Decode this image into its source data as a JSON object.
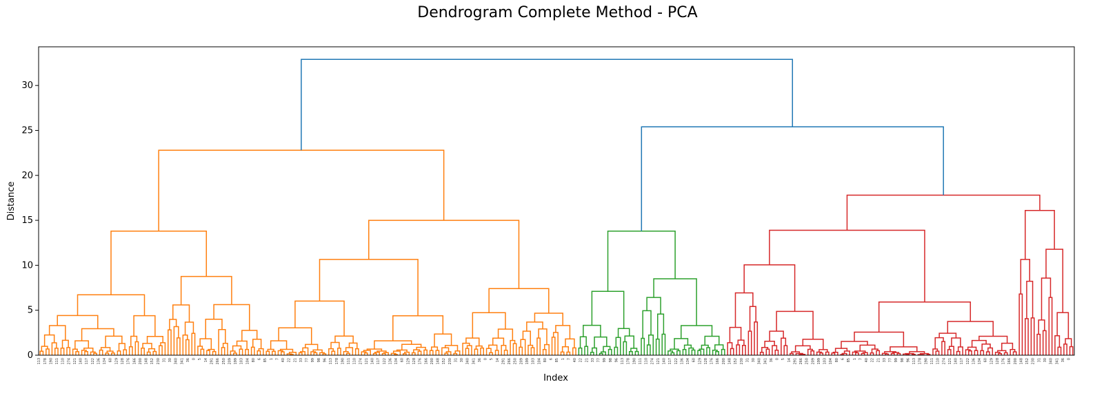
{
  "chart_data": {
    "type": "dendrogram",
    "title": "Dendrogram Complete Method - PCA",
    "xlabel": "Index",
    "ylabel": "Distance",
    "ylim": [
      0,
      34.3
    ],
    "yticks": [
      0,
      5,
      10,
      15,
      20,
      25,
      30
    ],
    "grid": false,
    "colors": {
      "orange": "#ff7f0e",
      "green": "#2ca02c",
      "red": "#d62728",
      "above_threshold": "#1f77b4"
    },
    "clusters": [
      {
        "color": "orange",
        "leaf_count": 181
      },
      {
        "color": "green",
        "leaf_count": 50
      },
      {
        "color": "red",
        "leaf_count": 117
      }
    ],
    "top_merges": [
      {
        "height": 32.9,
        "children": [
          "orange",
          "green+red"
        ],
        "color": "above_threshold"
      },
      {
        "height": 25.4,
        "children": [
          "green",
          "red"
        ],
        "color": "above_threshold"
      },
      {
        "height": 22.8,
        "cluster": "orange"
      },
      {
        "height": 17.8,
        "cluster": "red"
      },
      {
        "height": 16.1,
        "cluster": "red"
      },
      {
        "height": 15.0,
        "cluster": "orange"
      },
      {
        "height": 13.9,
        "cluster": "red"
      },
      {
        "height": 13.8,
        "cluster": "orange"
      },
      {
        "height": 13.8,
        "cluster": "green"
      },
      {
        "height": 11.5,
        "cluster": "red"
      },
      {
        "height": 11.2,
        "cluster": "orange"
      },
      {
        "height": 8.5,
        "cluster": "green"
      },
      {
        "height": 8.5,
        "cluster": "orange"
      },
      {
        "height": 8.2,
        "cluster": "red"
      },
      {
        "height": 7.9,
        "cluster": "orange"
      },
      {
        "height": 7.7,
        "cluster": "red"
      },
      {
        "height": 7.6,
        "cluster": "red"
      },
      {
        "height": 7.5,
        "cluster": "orange"
      },
      {
        "height": 7.3,
        "cluster": "red"
      },
      {
        "height": 7.1,
        "cluster": "green"
      },
      {
        "height": 7.0,
        "cluster": "orange"
      },
      {
        "height": 6.9,
        "cluster": "orange"
      },
      {
        "height": 6.8,
        "cluster": "orange"
      }
    ],
    "leaf_labels_visible": [
      "113",
      "178",
      "190",
      "111",
      "110",
      "274",
      "121",
      "140",
      "117",
      "122",
      "136",
      "134",
      "60",
      "129",
      "128",
      "176",
      "166",
      "200",
      "148",
      "152",
      "230",
      "31",
      "30",
      "340",
      "341",
      "36",
      "0",
      "5",
      "14",
      "291",
      "266",
      "250",
      "209",
      "199",
      "103",
      "104",
      "80",
      "6",
      "85",
      "1",
      "7",
      "40",
      "22",
      "21",
      "33",
      "77",
      "99",
      "98",
      "96"
    ]
  }
}
